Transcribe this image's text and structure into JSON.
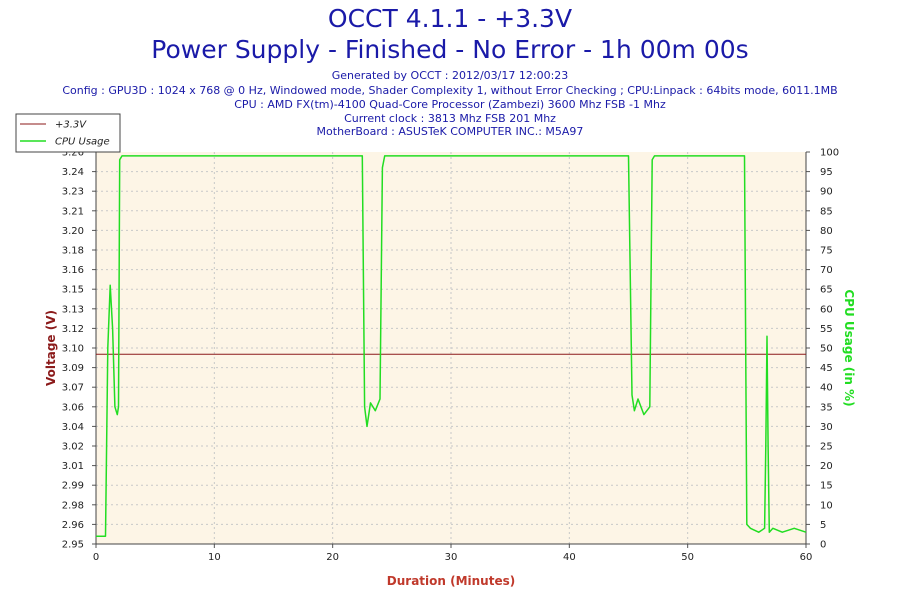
{
  "header": {
    "title": "OCCT 4.1.1 - +3.3V",
    "subtitle": "Power Supply - Finished - No Error - 1h 00m 00s",
    "info_lines": [
      "Generated by OCCT : 2012/03/17 12:00:23",
      "Config : GPU3D : 1024 x 768 @ 0 Hz, Windowed mode, Shader Complexity 1, without Error Checking ; CPU:Linpack : 64bits mode, 6011.1MB",
      "CPU : AMD FX(tm)-4100 Quad-Core Processor (Zambezi) 3600 Mhz FSB -1 Mhz",
      "Current clock : 3813 Mhz FSB 201 Mhz",
      "MotherBoard : ASUSTeK COMPUTER INC.: M5A97"
    ]
  },
  "colors": {
    "voltage": "#8b1a1a",
    "cpu": "#22dd22",
    "plot_bg": "#fdf5e6",
    "title": "#1a1aa8",
    "xlabel": "#c0392b"
  },
  "chart_data": {
    "type": "line",
    "xlabel": "Duration (Minutes)",
    "ylabel": "Voltage (V)",
    "y2label": "CPU Usage (in %)",
    "xlim": [
      0,
      60
    ],
    "ylim": [
      2.95,
      3.26
    ],
    "y2lim": [
      0,
      100
    ],
    "x_ticks": [
      "0",
      "10",
      "20",
      "30",
      "40",
      "50",
      "60"
    ],
    "y_ticks": [
      "2.95",
      "2.96",
      "2.98",
      "2.99",
      "3.01",
      "3.02",
      "3.04",
      "3.06",
      "3.07",
      "3.09",
      "3.10",
      "3.12",
      "3.13",
      "3.15",
      "3.16",
      "3.18",
      "3.20",
      "3.21",
      "3.23",
      "3.24",
      "3.26"
    ],
    "y2_ticks": [
      "0",
      "5",
      "10",
      "15",
      "20",
      "25",
      "30",
      "35",
      "40",
      "45",
      "50",
      "55",
      "60",
      "65",
      "70",
      "75",
      "80",
      "85",
      "90",
      "95",
      "100"
    ],
    "legend_position": "top-left",
    "grid": true,
    "series": [
      {
        "name": "+3.3V",
        "axis": "left",
        "x": [
          0,
          60
        ],
        "y": [
          3.1,
          3.1
        ]
      },
      {
        "name": "CPU Usage",
        "axis": "right",
        "x": [
          0,
          0.8,
          1.0,
          1.2,
          1.4,
          1.6,
          1.8,
          1.9,
          2.0,
          2.2,
          10,
          20,
          22.5,
          22.7,
          22.9,
          23.2,
          23.6,
          24.0,
          24.2,
          24.4,
          30,
          40,
          45.0,
          45.3,
          45.5,
          45.8,
          46.3,
          46.8,
          47.0,
          47.2,
          50,
          54.8,
          55.0,
          55.3,
          56.0,
          56.5,
          56.6,
          56.7,
          56.8,
          56.9,
          57.2,
          58,
          59,
          60
        ],
        "y": [
          2,
          2,
          50,
          66,
          55,
          35,
          33,
          35,
          98,
          99,
          99,
          99,
          99,
          35,
          30,
          36,
          34,
          37,
          96,
          99,
          99,
          99,
          99,
          38,
          34,
          37,
          33,
          35,
          98,
          99,
          99,
          99,
          5,
          4,
          3,
          4,
          25,
          53,
          25,
          3,
          4,
          3,
          4,
          3
        ]
      }
    ]
  }
}
